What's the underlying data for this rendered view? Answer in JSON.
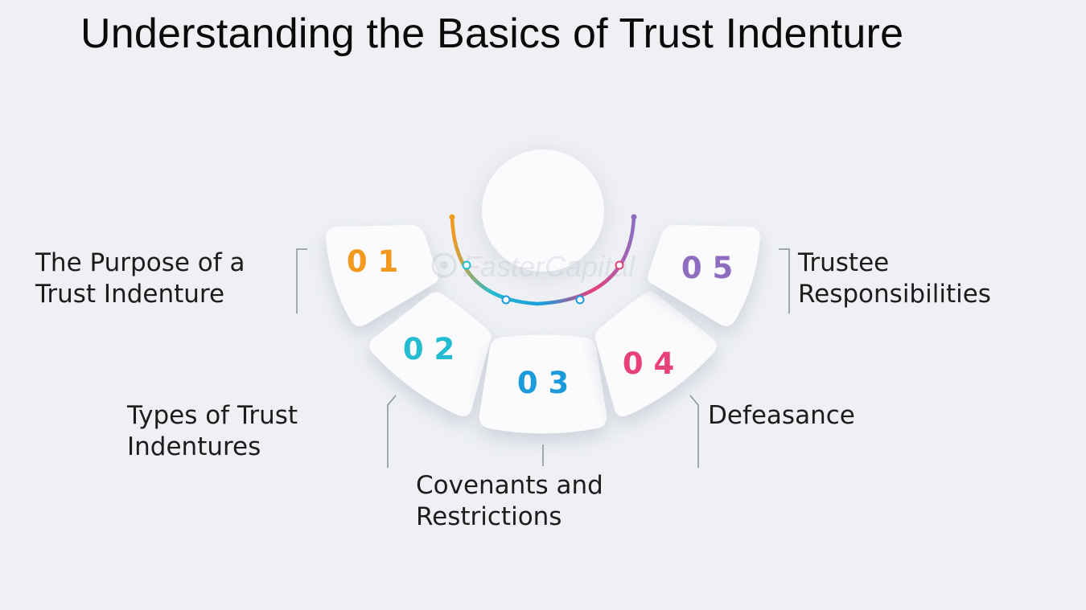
{
  "title": "Understanding the Basics of Trust Indenture",
  "watermark": "FasterCapital",
  "colors": {
    "background": "#eef0f4",
    "card": "#fbfbfd",
    "orange": "#f39a1e",
    "teal": "#24bcd0",
    "blue": "#1c9bdc",
    "pink": "#e8407a",
    "purple": "#8e6cc0"
  },
  "items": [
    {
      "number": "0 1",
      "lines": [
        "The Purpose of a",
        "Trust Indenture"
      ],
      "color": "orange"
    },
    {
      "number": "0 2",
      "lines": [
        "Types of Trust",
        "Indentures"
      ],
      "color": "teal"
    },
    {
      "number": "0 3",
      "lines": [
        "Covenants and",
        "Restrictions"
      ],
      "color": "blue"
    },
    {
      "number": "0 4",
      "lines": [
        "Defeasance"
      ],
      "color": "pink"
    },
    {
      "number": "0 5",
      "lines": [
        "Trustee",
        "Responsibilities"
      ],
      "color": "purple"
    }
  ]
}
